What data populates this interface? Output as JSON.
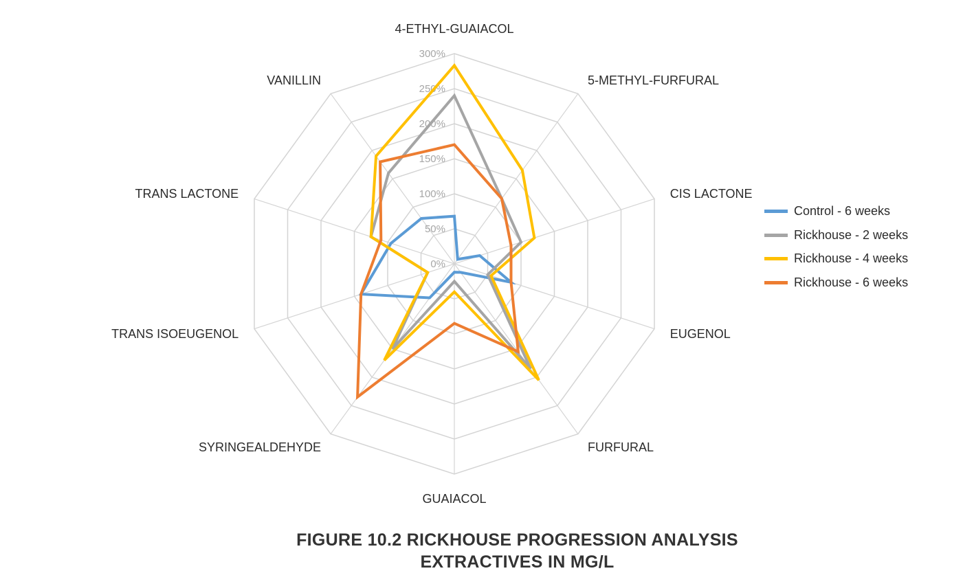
{
  "caption": {
    "line1": "FIGURE 10.2  RICKHOUSE PROGRESSION ANALYSIS",
    "line2": "EXTRACTIVES IN MG/L"
  },
  "colors": {
    "grid": "#d4d4d4",
    "text": "#2b2b2b",
    "tick_text": "#a6a6a6"
  },
  "chart_data": {
    "type": "radar",
    "title": "FIGURE 10.2  RICKHOUSE PROGRESSION ANALYSIS EXTRACTIVES IN MG/L",
    "categories": [
      "4-ETHYL-GUAIACOL",
      "5-METHYL-FURFURAL",
      "CIS LACTONE",
      "EUGENOL",
      "FURFURAL",
      "GUAIACOL",
      "SYRINGEALDEHYDE",
      "TRANS ISOEUGENOL",
      "TRANS LACTONE",
      "VANILLIN"
    ],
    "ticks": [
      "0%",
      "50%",
      "100%",
      "150%",
      "200%",
      "250%",
      "300%"
    ],
    "rlim": [
      0,
      300
    ],
    "grid": true,
    "legend_position": "right",
    "series": [
      {
        "name": "Control - 6 weeks",
        "color": "#5b9bd5",
        "values": [
          68,
          8,
          38,
          85,
          15,
          12,
          60,
          140,
          95,
          80
        ]
      },
      {
        "name": "Rickhouse - 2 weeks",
        "color": "#a5a5a5",
        "values": [
          240,
          115,
          100,
          50,
          185,
          25,
          150,
          40,
          125,
          160
        ]
      },
      {
        "name": "Rickhouse - 4 weeks",
        "color": "#ffc000",
        "values": [
          283,
          165,
          120,
          55,
          205,
          40,
          170,
          40,
          125,
          190
        ]
      },
      {
        "name": "Rickhouse - 6 weeks",
        "color": "#ed7d31",
        "values": [
          170,
          115,
          85,
          85,
          155,
          85,
          235,
          140,
          110,
          180
        ]
      }
    ]
  }
}
